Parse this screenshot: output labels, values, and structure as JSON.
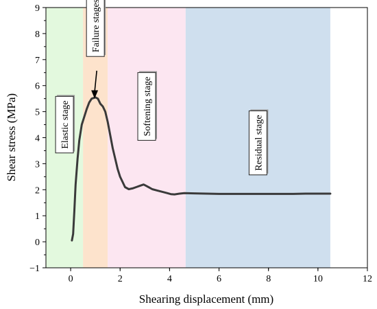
{
  "chart_data": {
    "type": "line",
    "xlabel": "Shearing displacement (mm)",
    "ylabel": "Shear stress (MPa)",
    "xlim": [
      -1,
      12
    ],
    "ylim": [
      -1,
      9
    ],
    "xticks": [
      "0",
      "2",
      "4",
      "6",
      "8",
      "10",
      "12"
    ],
    "yticks": [
      "−1",
      "0",
      "1",
      "2",
      "3",
      "4",
      "5",
      "6",
      "7",
      "8",
      "9"
    ],
    "xtick_values": [
      0,
      2,
      4,
      6,
      8,
      10,
      12
    ],
    "ytick_values": [
      -1,
      0,
      1,
      2,
      3,
      4,
      5,
      6,
      7,
      8,
      9
    ],
    "grid": false,
    "line_color": "#3a3a3a",
    "regions": [
      {
        "label": "Elastic stage",
        "x_start": -1,
        "x_end": 0.5,
        "color": "#e3f9de",
        "label_y": 4.5
      },
      {
        "label": "Failure stages",
        "x_start": 0.5,
        "x_end": 1.5,
        "color": "#fde3cc",
        "label_y": 8.3
      },
      {
        "label": "Softening stage",
        "x_start": 1.5,
        "x_end": 4.65,
        "color": "#fce6f1",
        "label_y": 5.2
      },
      {
        "label": "Residual stage",
        "x_start": 4.65,
        "x_end": 10.5,
        "color": "#cfdfee",
        "label_y": 3.8
      }
    ],
    "annotation": {
      "text": "Failure stages",
      "arrow_to": [
        0.97,
        5.45
      ]
    },
    "series": [
      {
        "points": [
          [
            0.05,
            0.05
          ],
          [
            0.1,
            0.3
          ],
          [
            0.15,
            1.2
          ],
          [
            0.2,
            2.2
          ],
          [
            0.28,
            3.2
          ],
          [
            0.35,
            3.9
          ],
          [
            0.45,
            4.5
          ],
          [
            0.55,
            4.8
          ],
          [
            0.65,
            5.1
          ],
          [
            0.75,
            5.35
          ],
          [
            0.85,
            5.5
          ],
          [
            1.0,
            5.55
          ],
          [
            1.1,
            5.5
          ],
          [
            1.2,
            5.3
          ],
          [
            1.3,
            5.2
          ],
          [
            1.4,
            5.0
          ],
          [
            1.5,
            4.6
          ],
          [
            1.6,
            4.1
          ],
          [
            1.7,
            3.6
          ],
          [
            1.8,
            3.2
          ],
          [
            1.9,
            2.8
          ],
          [
            2.0,
            2.5
          ],
          [
            2.1,
            2.3
          ],
          [
            2.2,
            2.1
          ],
          [
            2.35,
            2.02
          ],
          [
            2.5,
            2.05
          ],
          [
            2.65,
            2.1
          ],
          [
            2.8,
            2.15
          ],
          [
            2.95,
            2.2
          ],
          [
            3.05,
            2.15
          ],
          [
            3.15,
            2.1
          ],
          [
            3.3,
            2.02
          ],
          [
            3.5,
            1.97
          ],
          [
            3.7,
            1.92
          ],
          [
            3.9,
            1.87
          ],
          [
            4.05,
            1.83
          ],
          [
            4.2,
            1.82
          ],
          [
            4.4,
            1.85
          ],
          [
            4.6,
            1.87
          ],
          [
            5.0,
            1.86
          ],
          [
            5.5,
            1.85
          ],
          [
            6.0,
            1.84
          ],
          [
            6.5,
            1.84
          ],
          [
            7.0,
            1.84
          ],
          [
            7.5,
            1.84
          ],
          [
            8.0,
            1.84
          ],
          [
            8.5,
            1.84
          ],
          [
            9.0,
            1.84
          ],
          [
            9.5,
            1.85
          ],
          [
            10.0,
            1.85
          ],
          [
            10.5,
            1.85
          ]
        ]
      }
    ]
  }
}
